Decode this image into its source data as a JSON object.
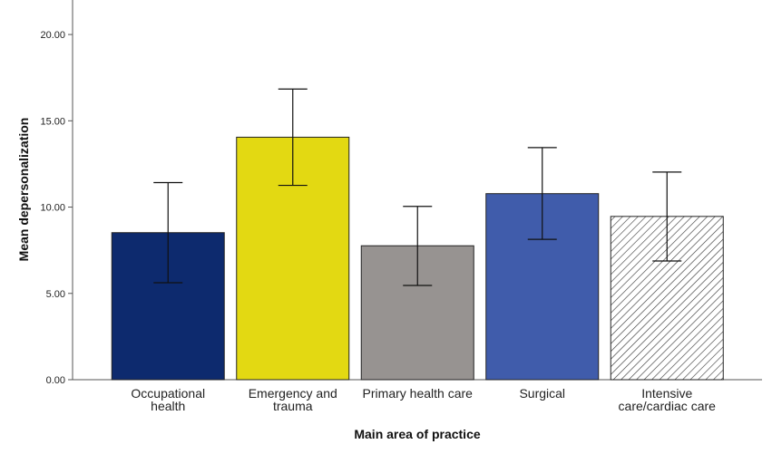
{
  "chart_data": {
    "type": "bar",
    "xlabel": "Main area of practice",
    "ylabel": "Mean depersonalization",
    "ylim": [
      0,
      22
    ],
    "yticks": [
      0,
      5,
      10,
      15,
      20
    ],
    "ytick_labels": [
      "0.00",
      "5.00",
      "10.00",
      "15.00",
      "20.00"
    ],
    "grid": false,
    "categories": [
      [
        "Occupational",
        "health"
      ],
      [
        "Emergency and",
        "trauma"
      ],
      [
        "Primary health care"
      ],
      [
        "Surgical"
      ],
      [
        "Intensive",
        "care/cardiac care"
      ]
    ],
    "values": [
      8.52,
      14.05,
      7.76,
      10.78,
      9.46
    ],
    "error_low": [
      5.62,
      11.26,
      5.46,
      8.13,
      6.88
    ],
    "error_high": [
      11.42,
      16.84,
      10.04,
      13.45,
      12.03
    ],
    "colors": [
      "#0d2a6e",
      "#e3d912",
      "#979391",
      "#405cab",
      "hatch"
    ]
  }
}
